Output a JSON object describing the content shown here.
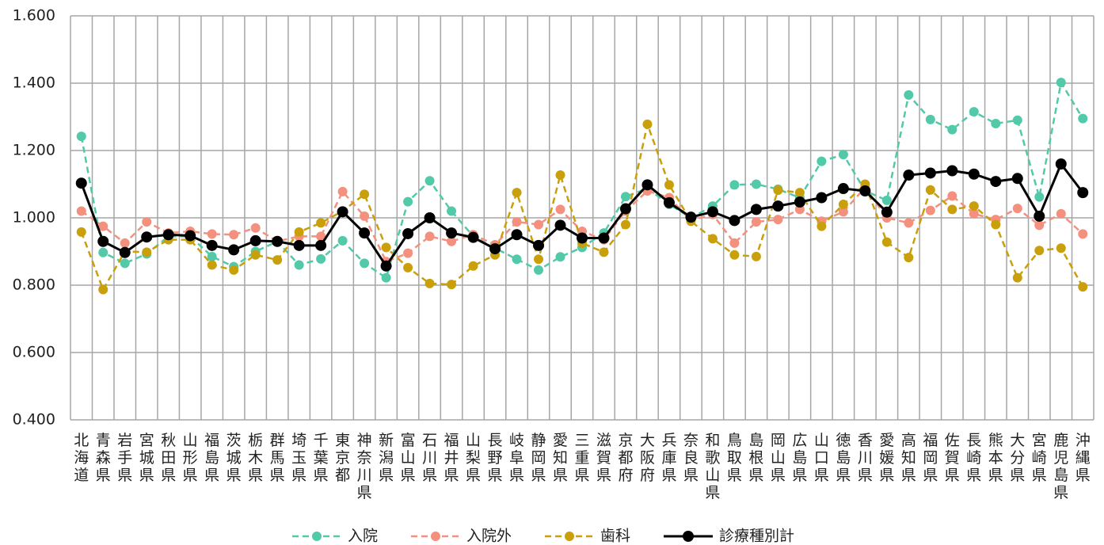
{
  "chart_data": {
    "type": "line",
    "categories": [
      "北海道",
      "青森県",
      "岩手県",
      "宮城県",
      "秋田県",
      "山形県",
      "福島県",
      "茨城県",
      "栃木県",
      "群馬県",
      "埼玉県",
      "千葉県",
      "東京都",
      "神奈川県",
      "新潟県",
      "富山県",
      "石川県",
      "福井県",
      "山梨県",
      "長野県",
      "岐阜県",
      "静岡県",
      "愛知県",
      "三重県",
      "滋賀県",
      "京都府",
      "大阪府",
      "兵庫県",
      "奈良県",
      "和歌山県",
      "鳥取県",
      "島根県",
      "岡山県",
      "広島県",
      "山口県",
      "徳島県",
      "香川県",
      "愛媛県",
      "高知県",
      "福岡県",
      "佐賀県",
      "長崎県",
      "熊本県",
      "大分県",
      "宮崎県",
      "鹿児島県",
      "沖縄県"
    ],
    "series": [
      {
        "name": "入院",
        "color": "#52c9a8",
        "line_style": "dashed",
        "values": [
          1.242,
          0.897,
          0.865,
          0.893,
          0.945,
          0.945,
          0.885,
          0.855,
          0.9,
          0.93,
          0.86,
          0.878,
          0.932,
          0.865,
          0.822,
          1.048,
          1.11,
          1.02,
          0.945,
          0.91,
          0.877,
          0.845,
          0.884,
          0.912,
          0.955,
          1.063,
          1.087,
          1.04,
          1.0,
          1.035,
          1.098,
          1.1,
          1.085,
          1.06,
          1.168,
          1.188,
          1.08,
          1.052,
          1.365,
          1.292,
          1.262,
          1.315,
          1.28,
          1.29,
          1.062,
          1.402,
          1.295
        ]
      },
      {
        "name": "入院外",
        "color": "#f4907e",
        "line_style": "dashed",
        "values": [
          1.02,
          0.975,
          0.925,
          0.988,
          0.955,
          0.96,
          0.952,
          0.95,
          0.97,
          0.93,
          0.945,
          0.945,
          1.078,
          1.005,
          0.87,
          0.895,
          0.945,
          0.93,
          0.95,
          0.92,
          0.988,
          0.98,
          1.025,
          0.96,
          0.935,
          1.02,
          1.08,
          1.06,
          0.992,
          1.01,
          0.925,
          0.988,
          0.995,
          1.025,
          0.99,
          1.018,
          1.09,
          1.0,
          0.985,
          1.022,
          1.065,
          1.012,
          0.995,
          1.028,
          0.978,
          1.012,
          0.952
        ]
      },
      {
        "name": "歯科",
        "color": "#c9a00c",
        "line_style": "dashed",
        "values": [
          0.958,
          0.787,
          0.9,
          0.898,
          0.935,
          0.935,
          0.86,
          0.845,
          0.89,
          0.875,
          0.958,
          0.985,
          1.02,
          1.07,
          0.912,
          0.852,
          0.805,
          0.802,
          0.857,
          0.89,
          1.075,
          0.877,
          1.127,
          0.925,
          0.898,
          0.98,
          1.278,
          1.098,
          0.99,
          0.938,
          0.89,
          0.885,
          1.082,
          1.075,
          0.975,
          1.04,
          1.1,
          0.928,
          0.882,
          1.083,
          1.025,
          1.035,
          0.98,
          0.822,
          0.903,
          0.91,
          0.795
        ]
      },
      {
        "name": "診療種別計",
        "color": "#000000",
        "line_style": "solid",
        "values": [
          1.103,
          0.93,
          0.897,
          0.943,
          0.95,
          0.947,
          0.918,
          0.905,
          0.932,
          0.93,
          0.918,
          0.918,
          1.018,
          0.955,
          0.857,
          0.953,
          1.0,
          0.955,
          0.942,
          0.908,
          0.95,
          0.918,
          0.978,
          0.94,
          0.94,
          1.027,
          1.098,
          1.045,
          1.002,
          1.018,
          0.992,
          1.025,
          1.035,
          1.047,
          1.06,
          1.087,
          1.08,
          1.017,
          1.127,
          1.133,
          1.14,
          1.13,
          1.108,
          1.117,
          1.005,
          1.16,
          1.075
        ]
      }
    ],
    "ylim": [
      0.4,
      1.6
    ],
    "yticks": [
      {
        "value": 0.4,
        "label": "0.400"
      },
      {
        "value": 0.6,
        "label": "0.600"
      },
      {
        "value": 0.8,
        "label": "0.800"
      },
      {
        "value": 1.0,
        "label": "1.000"
      },
      {
        "value": 1.2,
        "label": "1.200"
      },
      {
        "value": 1.4,
        "label": "1.400"
      },
      {
        "value": 1.6,
        "label": "1.600"
      }
    ],
    "grid": true,
    "legend": "bottom"
  }
}
